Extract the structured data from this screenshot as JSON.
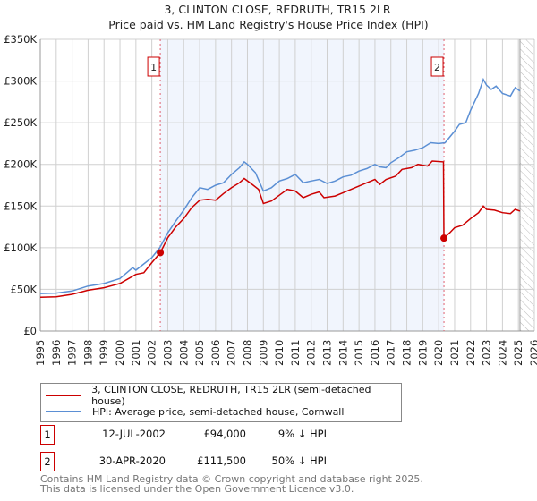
{
  "chart_data": {
    "type": "line",
    "title": "3, CLINTON CLOSE, REDRUTH, TR15 2LR",
    "subtitle": "Price paid vs. HM Land Registry's House Price Index (HPI)",
    "xlim": [
      1995,
      2026
    ],
    "ylim": [
      0,
      350000
    ],
    "x_ticks": [
      "1995",
      "1996",
      "1997",
      "1998",
      "1999",
      "2000",
      "2001",
      "2002",
      "2003",
      "2004",
      "2005",
      "2006",
      "2007",
      "2008",
      "2009",
      "2010",
      "2011",
      "2012",
      "2013",
      "2014",
      "2015",
      "2016",
      "2017",
      "2018",
      "2019",
      "2020",
      "2021",
      "2022",
      "2023",
      "2024",
      "2025",
      "2026"
    ],
    "y_ticks": [
      {
        "value": 0,
        "label": "£0"
      },
      {
        "value": 50000,
        "label": "£50K"
      },
      {
        "value": 100000,
        "label": "£100K"
      },
      {
        "value": 150000,
        "label": "£150K"
      },
      {
        "value": 200000,
        "label": "£200K"
      },
      {
        "value": 250000,
        "label": "£250K"
      },
      {
        "value": 300000,
        "label": "£300K"
      },
      {
        "value": 350000,
        "label": "£350K"
      }
    ],
    "grid": true,
    "shaded_range": [
      2002.53,
      2020.33
    ],
    "forecast_from": 2025.1,
    "series": [
      {
        "name": "3, CLINTON CLOSE, REDRUTH, TR15 2LR (semi-detached house)",
        "color": "#cc0000",
        "x": [
          1995,
          1996,
          1997,
          1998,
          1999,
          2000,
          2001,
          2001.5,
          2002,
          2002.53,
          2003,
          2003.5,
          2004,
          2004.5,
          2005,
          2005.5,
          2006,
          2006.5,
          2007,
          2007.5,
          2007.8,
          2008.3,
          2008.7,
          2009,
          2009.5,
          2010,
          2010.5,
          2011,
          2011.5,
          2012,
          2012.5,
          2012.8,
          2013.5,
          2014,
          2014.5,
          2015,
          2015.5,
          2016,
          2016.3,
          2016.7,
          2017.3,
          2017.7,
          2018.3,
          2018.7,
          2019.3,
          2019.6,
          2020.3,
          2020.33,
          2020.7,
          2021,
          2021.5,
          2022,
          2022.5,
          2022.8,
          2023,
          2023.5,
          2024,
          2024.5,
          2024.8,
          2025.1
        ],
        "y": [
          40500,
          41000,
          44000,
          49000,
          52000,
          57000,
          68000,
          70000,
          82000,
          94000,
          112000,
          125000,
          135000,
          148000,
          157000,
          158000,
          157000,
          165000,
          172000,
          178000,
          183000,
          176000,
          170000,
          153000,
          156000,
          163000,
          170000,
          168000,
          160000,
          164000,
          167000,
          160000,
          162000,
          166000,
          170000,
          174000,
          178000,
          182000,
          176000,
          182000,
          186000,
          194000,
          196000,
          200000,
          198000,
          204000,
          203000,
          111500,
          118000,
          124000,
          127000,
          135000,
          142000,
          150000,
          146000,
          145000,
          142000,
          141000,
          146000,
          144000
        ]
      },
      {
        "name": "HPI: Average price, semi-detached house, Cornwall",
        "color": "#5b8fd4",
        "x": [
          1995,
          1996,
          1997,
          1998,
          1999,
          2000,
          2000.8,
          2001,
          2002,
          2002.5,
          2003,
          2003.5,
          2004,
          2004.5,
          2005,
          2005.5,
          2006,
          2006.5,
          2007,
          2007.5,
          2007.8,
          2008,
          2008.5,
          2009,
          2009.5,
          2010,
          2010.5,
          2011,
          2011.5,
          2012,
          2012.5,
          2013,
          2013.5,
          2014,
          2014.5,
          2015,
          2015.5,
          2016,
          2016.3,
          2016.7,
          2017,
          2017.5,
          2018,
          2018.5,
          2019,
          2019.5,
          2020,
          2020.4,
          2021,
          2021.3,
          2021.7,
          2022,
          2022.5,
          2022.8,
          2023,
          2023.3,
          2023.6,
          2024,
          2024.5,
          2024.8,
          2025.1
        ],
        "y": [
          45000,
          45500,
          48000,
          54000,
          57000,
          63000,
          76000,
          73000,
          88000,
          100000,
          118000,
          132000,
          145000,
          160000,
          172000,
          170000,
          175000,
          178000,
          188000,
          196000,
          203000,
          200000,
          190000,
          168000,
          172000,
          180000,
          183000,
          188000,
          178000,
          180000,
          182000,
          177000,
          180000,
          185000,
          187000,
          192000,
          195000,
          200000,
          197000,
          196000,
          202000,
          208000,
          215000,
          217000,
          220000,
          226000,
          225000,
          226000,
          240000,
          248000,
          250000,
          265000,
          285000,
          302000,
          295000,
          290000,
          294000,
          285000,
          282000,
          292000,
          288000
        ]
      }
    ],
    "markers": [
      {
        "label": "1",
        "x": 2002.53,
        "y": 94000
      },
      {
        "label": "2",
        "x": 2020.33,
        "y": 111500
      }
    ],
    "legend_placement": "below"
  },
  "legend": {
    "property": "3, CLINTON CLOSE, REDRUTH, TR15 2LR (semi-detached house)",
    "hpi": "HPI: Average price, semi-detached house, Cornwall"
  },
  "sales": [
    {
      "num": "1",
      "date": "12-JUL-2002",
      "price": "£94,000",
      "hpi": "9% ↓ HPI"
    },
    {
      "num": "2",
      "date": "30-APR-2020",
      "price": "£111,500",
      "hpi": "50% ↓ HPI"
    }
  ],
  "footer": {
    "line1": "Contains HM Land Registry data © Crown copyright and database right 2025.",
    "line2": "This data is licensed under the Open Government Licence v3.0."
  }
}
